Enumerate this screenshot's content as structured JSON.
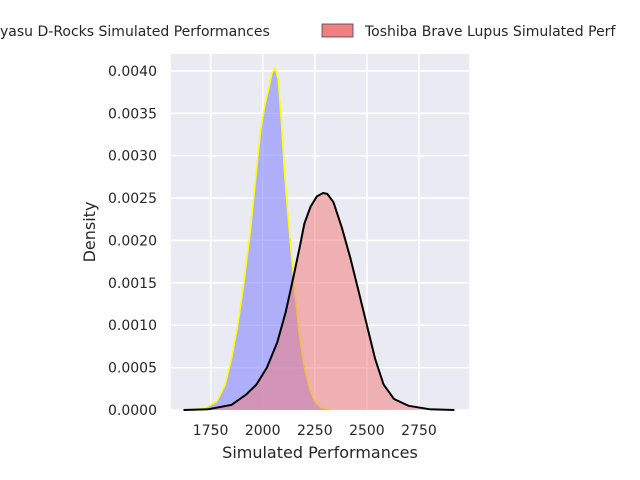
{
  "chart_data": {
    "type": "area",
    "title": "",
    "xlabel": "Simulated Performances",
    "ylabel": "Density",
    "xlim": [
      1560,
      2990
    ],
    "ylim": [
      0,
      0.0042
    ],
    "xticks": [
      1750,
      2000,
      2250,
      2500,
      2750
    ],
    "yticks": [
      0.0,
      0.0005,
      0.001,
      0.0015,
      0.002,
      0.0025,
      0.003,
      0.0035,
      0.004
    ],
    "ytick_labels": [
      "0.0000",
      "0.0005",
      "0.0010",
      "0.0015",
      "0.0020",
      "0.0025",
      "0.0030",
      "0.0035",
      "0.0040"
    ],
    "grid": true,
    "background": "#eaeaf2",
    "legend_position": "top, above plot",
    "series": [
      {
        "name": "Kubota Spears Funabashi/Tokyo Bay?? Kamaishi? Urayasu D-Rocks Simulated Performances",
        "legend_visible_text": "yasu D-Rocks Simulated Performances",
        "fill_color": "#7b7bff",
        "line_color": "#ffff00",
        "points": [
          [
            1640,
            0.0
          ],
          [
            1720,
            2e-05
          ],
          [
            1780,
            0.0001
          ],
          [
            1820,
            0.0003
          ],
          [
            1850,
            0.0006
          ],
          [
            1880,
            0.001
          ],
          [
            1910,
            0.0015
          ],
          [
            1940,
            0.0021
          ],
          [
            1965,
            0.0027
          ],
          [
            1990,
            0.0033
          ],
          [
            2010,
            0.0036
          ],
          [
            2030,
            0.0038
          ],
          [
            2045,
            0.00398
          ],
          [
            2060,
            0.00403
          ],
          [
            2075,
            0.0039
          ],
          [
            2090,
            0.0034
          ],
          [
            2105,
            0.0028
          ],
          [
            2125,
            0.0022
          ],
          [
            2150,
            0.0015
          ],
          [
            2175,
            0.0009
          ],
          [
            2200,
            0.0005
          ],
          [
            2225,
            0.00025
          ],
          [
            2250,
            0.0001
          ],
          [
            2280,
            3e-05
          ],
          [
            2320,
            0.0
          ]
        ]
      },
      {
        "name": "Toshiba Brave Lupus Simulated Performances",
        "legend_visible_text": "Toshiba Brave Lupus Simulated Perf",
        "fill_color": "#f08080",
        "line_color": "#000000",
        "points": [
          [
            1620,
            0.0
          ],
          [
            1740,
            1e-05
          ],
          [
            1850,
            6e-05
          ],
          [
            1920,
            0.00018
          ],
          [
            1970,
            0.0003
          ],
          [
            2020,
            0.0005
          ],
          [
            2070,
            0.0008
          ],
          [
            2110,
            0.00115
          ],
          [
            2150,
            0.0016
          ],
          [
            2180,
            0.00195
          ],
          [
            2200,
            0.0022
          ],
          [
            2230,
            0.0024
          ],
          [
            2260,
            0.00252
          ],
          [
            2290,
            0.00256
          ],
          [
            2310,
            0.00255
          ],
          [
            2340,
            0.00245
          ],
          [
            2380,
            0.00215
          ],
          [
            2420,
            0.0018
          ],
          [
            2460,
            0.0014
          ],
          [
            2500,
            0.001
          ],
          [
            2540,
            0.0006
          ],
          [
            2580,
            0.0003
          ],
          [
            2630,
            0.00013
          ],
          [
            2700,
            5e-05
          ],
          [
            2800,
            1e-05
          ],
          [
            2920,
            0.0
          ]
        ]
      }
    ]
  }
}
